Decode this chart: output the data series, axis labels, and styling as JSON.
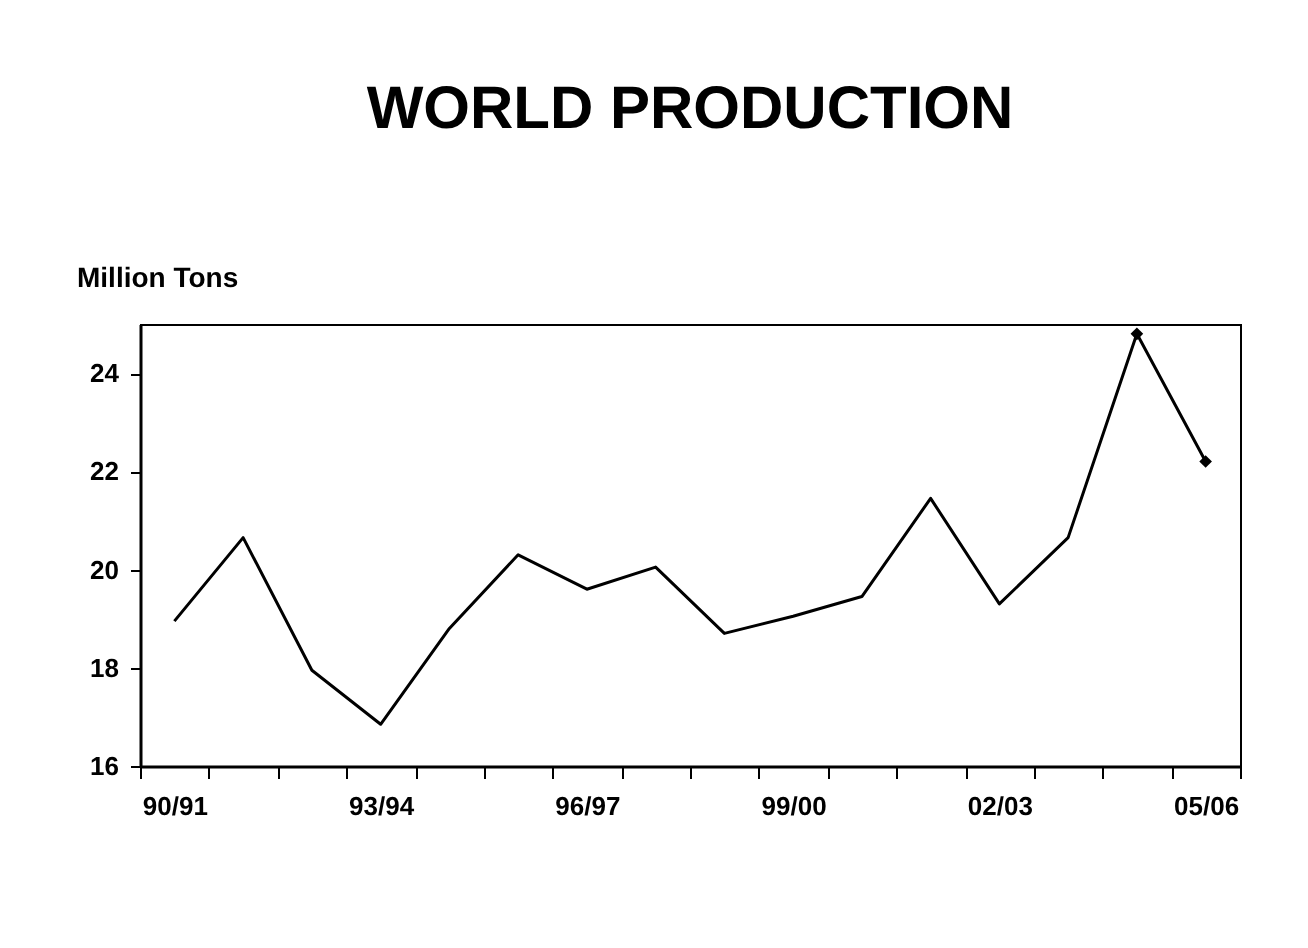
{
  "chart_data": {
    "type": "line",
    "title": "WORLD PRODUCTION",
    "ylabel": "Million Tons",
    "categories": [
      "90/91",
      null,
      null,
      "93/94",
      null,
      null,
      "96/97",
      null,
      null,
      "99/00",
      null,
      null,
      "02/03",
      null,
      null,
      "05/06"
    ],
    "series": [
      {
        "color": "#000000",
        "marker": "none",
        "values": [
          18.95,
          20.65,
          17.95,
          16.85,
          18.8,
          20.3,
          19.6,
          20.05,
          18.7,
          19.05,
          19.45,
          21.45,
          19.3,
          20.65,
          24.8,
          22.2
        ]
      },
      {
        "type": "scatter",
        "color": "#000000",
        "marker": "diamond",
        "values": [
          null,
          null,
          null,
          null,
          null,
          null,
          null,
          null,
          null,
          null,
          null,
          null,
          null,
          null,
          24.8,
          22.2
        ]
      }
    ],
    "ylim": [
      16,
      25
    ],
    "yticks": [
      16,
      18,
      20,
      22,
      24
    ],
    "grid": false
  }
}
